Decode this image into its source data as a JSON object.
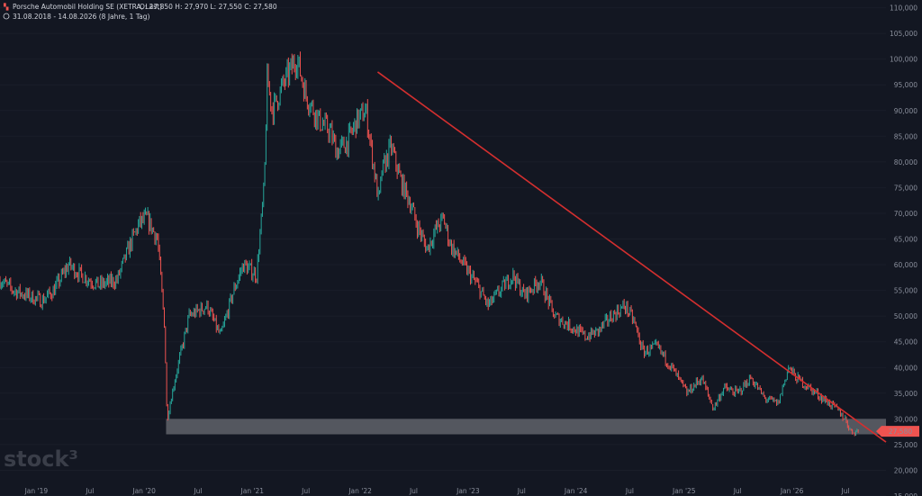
{
  "header": {
    "instrument": "Porsche Automobil Holding SE (XETRA, Last)",
    "ohlc": "O: 27,850  H: 27,970  L: 27,550  C: 27,580",
    "range": "31.08.2018 - 14.08.2026  (8 Jahre, 1 Tag)"
  },
  "watermark": "stock³",
  "colors": {
    "background": "#131722",
    "up": "#26a69a",
    "down": "#ef5350",
    "trendline": "#d32f2f",
    "zone": "#ffffff",
    "axis_text": "#8a8f9c"
  },
  "chart_data": {
    "type": "line",
    "title": "Porsche Automobil Holding SE (XETRA, Last)",
    "xlabel": "",
    "ylabel": "",
    "x_tick_labels": [
      "Jan '19",
      "Jul",
      "Jan '20",
      "Jul",
      "Jan '21",
      "Jul",
      "Jan '22",
      "Jul",
      "Jan '23",
      "Jul",
      "Jan '24",
      "Jul",
      "Jan '25",
      "Jul",
      "Jan '26",
      "Jul"
    ],
    "x_tick_dates": [
      "2019-01-01",
      "2019-07-01",
      "2020-01-01",
      "2020-07-01",
      "2021-01-01",
      "2021-07-01",
      "2022-01-01",
      "2022-07-01",
      "2023-01-01",
      "2023-07-01",
      "2024-01-01",
      "2024-07-01",
      "2025-01-01",
      "2025-07-01",
      "2026-01-01",
      "2026-07-01"
    ],
    "y_tick_labels": [
      "15,000",
      "20,000",
      "25,000",
      "30,000",
      "35,000",
      "40,000",
      "45,000",
      "50,000",
      "55,000",
      "60,000",
      "65,000",
      "70,000",
      "75,000",
      "80,000",
      "85,000",
      "90,000",
      "95,000",
      "100,000",
      "105,000",
      "110,000"
    ],
    "y_ticks": [
      15,
      20,
      25,
      30,
      35,
      40,
      45,
      50,
      55,
      60,
      65,
      70,
      75,
      80,
      85,
      90,
      95,
      100,
      105,
      110
    ],
    "ylim": [
      15,
      111.5
    ],
    "xlim": [
      "2018-08-31",
      "2026-11-15"
    ],
    "grid": false,
    "series": [
      {
        "x": [
          "2018-08-31",
          "2018-10-15",
          "2018-12-01",
          "2019-01-20",
          "2019-03-01",
          "2019-04-20",
          "2019-06-01",
          "2019-08-01",
          "2019-10-01",
          "2019-11-15",
          "2019-12-15",
          "2020-01-10",
          "2020-02-15",
          "2020-03-10",
          "2020-03-18",
          "2020-04-15",
          "2020-06-01",
          "2020-08-01",
          "2020-09-15",
          "2020-10-30",
          "2020-12-01",
          "2021-01-15",
          "2021-02-10",
          "2021-02-20",
          "2021-03-10",
          "2021-04-15",
          "2021-05-20",
          "2021-06-01",
          "2021-07-01",
          "2021-08-15",
          "2021-09-20",
          "2021-10-15",
          "2021-11-20",
          "2021-12-20",
          "2022-01-20",
          "2022-03-05",
          "2022-03-15",
          "2022-04-15",
          "2022-05-20",
          "2022-06-20",
          "2022-07-10",
          "2022-08-15",
          "2022-09-15",
          "2022-10-10",
          "2022-11-01",
          "2022-12-15",
          "2023-02-01",
          "2023-03-10",
          "2023-04-20",
          "2023-06-01",
          "2023-07-10",
          "2023-09-01",
          "2023-10-20",
          "2023-12-15",
          "2024-02-01",
          "2024-03-15",
          "2024-04-30",
          "2024-06-15",
          "2024-07-15",
          "2024-08-15",
          "2024-10-01",
          "2024-11-20",
          "2025-01-10",
          "2025-03-01",
          "2025-04-10",
          "2025-05-15",
          "2025-07-01",
          "2025-08-15",
          "2025-09-30",
          "2025-11-15",
          "2025-12-20",
          "2026-01-15",
          "2026-03-01",
          "2026-04-15",
          "2026-05-30",
          "2026-06-30",
          "2026-07-20",
          "2026-08-14"
        ],
        "values": [
          57,
          55,
          54,
          53,
          55,
          60,
          58,
          56,
          57,
          64,
          68,
          69,
          65,
          48,
          30,
          38,
          50,
          52,
          46,
          55,
          60,
          58,
          75,
          96,
          90,
          95,
          99,
          100,
          93,
          88,
          86,
          82,
          84,
          88,
          90,
          72,
          78,
          83,
          76,
          72,
          68,
          63,
          67,
          69,
          64,
          60,
          56,
          52,
          55,
          58,
          54,
          57,
          50,
          48,
          46,
          47,
          50,
          52,
          49,
          43,
          44,
          40,
          35,
          38,
          32,
          36,
          35,
          38,
          34,
          33,
          40,
          38,
          36,
          34,
          32,
          30,
          27.5,
          27.58
        ]
      }
    ],
    "trendline": {
      "start": {
        "x": "2022-03-01",
        "y": 97.5
      },
      "end": {
        "x": "2026-11-15",
        "y": 25.5
      }
    },
    "support_zone": {
      "x_start": "2020-03-15",
      "x_end": "2026-11-15",
      "y_low": 27,
      "y_high": 30
    },
    "last_value": 27.58,
    "last_value_label": "27,580"
  }
}
